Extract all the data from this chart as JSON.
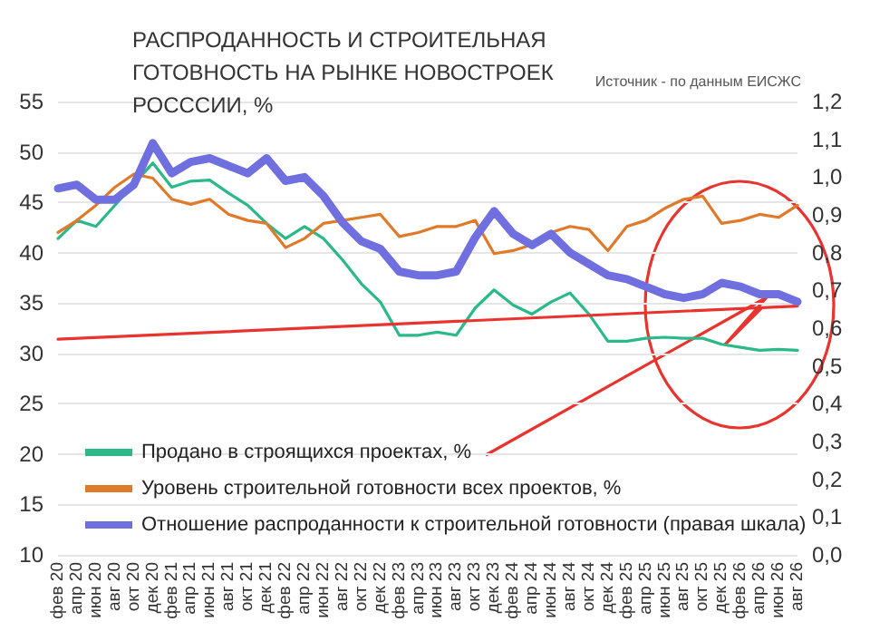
{
  "chart_data": {
    "type": "line",
    "title": "РАСПРОДАННОСТЬ И СТРОИТЕЛЬНАЯ ГОТОВНОСТЬ НА РЫНКЕ НОВОСТРОЕК РОСССИИ, %",
    "annotations": [
      "Источник - по данным ЕИСЖС"
    ],
    "categories": [
      "фев 20",
      "апр 20",
      "июн 20",
      "авг 20",
      "окт 20",
      "дек 20",
      "фев 21",
      "апр 21",
      "июн 21",
      "авг 21",
      "окт 21",
      "дек 21",
      "фев 22",
      "апр 22",
      "июн 22",
      "авг 22",
      "окт 22",
      "дек 22",
      "фев 23",
      "апр 23",
      "июн 23",
      "авг 23",
      "окт 23",
      "дек 23",
      "фев 24",
      "апр 24",
      "июн 24",
      "авг 24",
      "окт 24",
      "дек 24",
      "фев 25",
      "апр 25",
      "июн 25",
      "авг 25",
      "окт 25",
      "дек 25",
      "фев 26",
      "апр 26",
      "июн 26",
      "авг 26"
    ],
    "series": [
      {
        "name": "Продано в строящихся проектах, %",
        "color": "#2bb98a",
        "values": [
          41.4,
          43.2,
          42.6,
          44.7,
          46.8,
          48.9,
          46.5,
          47.1,
          47.2,
          45.9,
          44.7,
          42.9,
          41.4,
          42.6,
          41.4,
          39.3,
          36.9,
          35.1,
          31.8,
          31.8,
          32.1,
          31.8,
          34.5,
          36.3,
          34.8,
          33.9,
          35.1,
          36.0,
          33.9,
          31.2,
          31.2,
          31.5,
          31.6,
          31.5,
          31.5,
          30.9,
          30.6,
          30.3,
          30.4,
          30.3
        ]
      },
      {
        "name": "Уровень строительной готовности всех проектов, %",
        "color": "#e07a2b",
        "values": [
          42.0,
          43.2,
          44.7,
          46.5,
          47.8,
          47.4,
          45.3,
          44.8,
          45.3,
          43.8,
          43.2,
          42.9,
          40.5,
          41.4,
          42.9,
          43.2,
          43.5,
          43.8,
          41.6,
          42.0,
          42.6,
          42.6,
          43.2,
          39.9,
          40.2,
          40.8,
          42.0,
          42.6,
          42.3,
          40.2,
          42.6,
          43.2,
          44.4,
          45.3,
          45.6,
          42.9,
          43.2,
          43.8,
          43.5,
          44.7
        ]
      },
      {
        "name": "Отношение распроданности к строительной готовности (правая шкала)",
        "color": "#6f6fe0",
        "axis": "y2",
        "values": [
          0.97,
          0.98,
          0.94,
          0.94,
          0.98,
          1.09,
          1.01,
          1.04,
          1.05,
          1.03,
          1.01,
          1.05,
          0.99,
          1.0,
          0.95,
          0.88,
          0.83,
          0.81,
          0.75,
          0.74,
          0.74,
          0.75,
          0.84,
          0.91,
          0.85,
          0.82,
          0.85,
          0.8,
          0.77,
          0.74,
          0.73,
          0.71,
          0.69,
          0.68,
          0.69,
          0.72,
          0.71,
          0.69,
          0.69,
          0.67
        ]
      },
      {
        "type": "line",
        "color": "#e8332f",
        "values": [
          31.4,
          null,
          null,
          null,
          null,
          null,
          null,
          null,
          null,
          null,
          null,
          null,
          null,
          null,
          null,
          null,
          null,
          null,
          null,
          null,
          null,
          null,
          null,
          null,
          null,
          null,
          null,
          null,
          null,
          null,
          null,
          null,
          null,
          null,
          null,
          null,
          null,
          null,
          null,
          34.7
        ]
      }
    ],
    "ylim": [
      10,
      55
    ],
    "yticks": [
      10,
      15,
      20,
      25,
      30,
      35,
      40,
      45,
      50,
      55
    ],
    "y2lim": [
      0,
      1.2
    ],
    "y2ticks": [
      {
        "value": 0,
        "label": "0,0"
      },
      {
        "value": 0.1,
        "label": "0,1"
      },
      {
        "value": 0.2,
        "label": "0,2"
      },
      {
        "value": 0.3,
        "label": "0,3"
      },
      {
        "value": 0.4,
        "label": "0,4"
      },
      {
        "value": 0.5,
        "label": "0,5"
      },
      {
        "value": 0.6,
        "label": "0,6"
      },
      {
        "value": 0.7,
        "label": "0,7"
      },
      {
        "value": 0.8,
        "label": "0,8"
      },
      {
        "value": 0.9,
        "label": "0,9"
      },
      {
        "value": 1.0,
        "label": "1,0"
      },
      {
        "value": 1.1,
        "label": "1,1"
      },
      {
        "value": 1.2,
        "label": "1,2"
      }
    ],
    "grid": "y",
    "legend": "bottom left",
    "marker": "none",
    "line_style": "solid"
  }
}
